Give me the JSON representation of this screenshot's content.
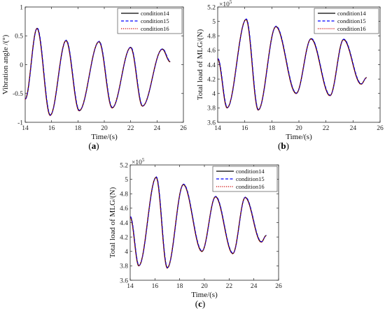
{
  "panels": [
    {
      "label_prefix": "(",
      "label_letter": "a",
      "label_suffix": ")"
    },
    {
      "label_prefix": "(",
      "label_letter": "b",
      "label_suffix": ")"
    },
    {
      "label_prefix": "(",
      "label_letter": "c",
      "label_suffix": ")"
    }
  ],
  "chart_data": [
    {
      "type": "line",
      "xlabel": "Time/(s)",
      "ylabel": "Vibration angle /(°)",
      "xlim": [
        14,
        26
      ],
      "ylim": [
        -1,
        1
      ],
      "xticks": [
        "14",
        "16",
        "18",
        "20",
        "22",
        "24",
        "26"
      ],
      "yticks": [
        "-1",
        "-0.5",
        "0",
        "0.5",
        "1"
      ],
      "exponent_label": "",
      "legend_position": "top-right",
      "grid": false,
      "series": [
        {
          "name": "condition14",
          "color": "#000000",
          "style": "solid"
        },
        {
          "name": "condition15",
          "color": "#0000ff",
          "style": "dashed"
        },
        {
          "name": "condition16",
          "color": "#cc0000",
          "style": "dotted"
        }
      ],
      "extrema": [
        [
          14.0,
          -0.6
        ],
        [
          14.9,
          0.63
        ],
        [
          15.9,
          -0.88
        ],
        [
          17.1,
          0.42
        ],
        [
          18.1,
          -0.8
        ],
        [
          19.6,
          0.4
        ],
        [
          20.6,
          -0.75
        ],
        [
          22.0,
          0.3
        ],
        [
          22.9,
          -0.72
        ],
        [
          24.4,
          0.27
        ],
        [
          25.0,
          0.05
        ]
      ]
    },
    {
      "type": "line",
      "xlabel": "Time/(s)",
      "ylabel": "Total load of MLG/(N)",
      "xlim": [
        14,
        26
      ],
      "ylim": [
        3.6,
        5.2
      ],
      "xticks": [
        "14",
        "16",
        "18",
        "20",
        "22",
        "24",
        "26"
      ],
      "yticks": [
        "3.6",
        "3.8",
        "4",
        "4.2",
        "4.4",
        "4.6",
        "4.8",
        "5",
        "5.2"
      ],
      "exponent_label": "×10^5",
      "legend_position": "top-right",
      "grid": false,
      "series": [
        {
          "name": "condition14",
          "color": "#000000",
          "style": "solid"
        },
        {
          "name": "condition15",
          "color": "#0000ff",
          "style": "dashed"
        },
        {
          "name": "condition16",
          "color": "#cc0000",
          "style": "dotted"
        }
      ],
      "extrema": [
        [
          14.0,
          4.48
        ],
        [
          14.7,
          3.8
        ],
        [
          16.1,
          5.03
        ],
        [
          17.0,
          3.77
        ],
        [
          18.3,
          4.93
        ],
        [
          19.8,
          4.0
        ],
        [
          20.9,
          4.76
        ],
        [
          22.3,
          3.97
        ],
        [
          23.3,
          4.75
        ],
        [
          24.6,
          4.13
        ],
        [
          25.0,
          4.22
        ]
      ]
    },
    {
      "type": "line",
      "xlabel": "Time/(s)",
      "ylabel": "Total load of MLG/(N)",
      "xlim": [
        14,
        26
      ],
      "ylim": [
        3.6,
        5.2
      ],
      "xticks": [
        "14",
        "16",
        "18",
        "20",
        "22",
        "24",
        "26"
      ],
      "yticks": [
        "3.6",
        "3.8",
        "4",
        "4.2",
        "4.4",
        "4.6",
        "4.8",
        "5",
        "5.2"
      ],
      "exponent_label": "×10^5",
      "legend_position": "top-right",
      "grid": false,
      "series": [
        {
          "name": "condition14",
          "color": "#000000",
          "style": "solid"
        },
        {
          "name": "condition15",
          "color": "#0000ff",
          "style": "dashed"
        },
        {
          "name": "condition16",
          "color": "#cc0000",
          "style": "dotted"
        }
      ],
      "extrema": [
        [
          14.0,
          4.48
        ],
        [
          14.7,
          3.8
        ],
        [
          16.1,
          5.03
        ],
        [
          17.0,
          3.77
        ],
        [
          18.3,
          4.93
        ],
        [
          19.8,
          4.0
        ],
        [
          20.9,
          4.76
        ],
        [
          22.3,
          3.97
        ],
        [
          23.3,
          4.75
        ],
        [
          24.6,
          4.13
        ],
        [
          25.0,
          4.22
        ]
      ]
    }
  ]
}
